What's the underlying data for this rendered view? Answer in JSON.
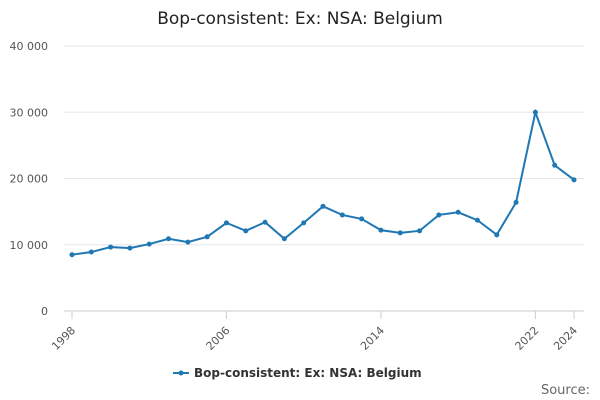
{
  "chart_data": {
    "type": "line",
    "title": "Bop-consistent: Ex: NSA: Belgium",
    "x": [
      1998,
      1999,
      2000,
      2001,
      2002,
      2003,
      2004,
      2005,
      2006,
      2007,
      2008,
      2009,
      2010,
      2011,
      2012,
      2013,
      2014,
      2015,
      2016,
      2017,
      2018,
      2019,
      2020,
      2021,
      2022,
      2023,
      2024
    ],
    "series": [
      {
        "name": "Bop-consistent: Ex: NSA: Belgium",
        "color": "#1f77b4",
        "values": [
          8500,
          8900,
          9650,
          9500,
          10100,
          10900,
          10400,
          11200,
          13300,
          12100,
          13400,
          10900,
          13300,
          15800,
          14500,
          13900,
          12200,
          11800,
          12100,
          14500,
          14900,
          13700,
          11500,
          16400,
          30000,
          22000,
          19800
        ]
      }
    ],
    "xlim": [
      1998,
      2024
    ],
    "xticks": [
      1998,
      2006,
      2014,
      2022,
      2024
    ],
    "ylim": [
      0,
      40000
    ],
    "yticks": [
      0,
      {
        "value": 10000,
        "label": "10 000"
      },
      {
        "value": 20000,
        "label": "20 000"
      },
      {
        "value": 30000,
        "label": "30 000"
      },
      {
        "value": 40000,
        "label": "40 000"
      }
    ],
    "grid": true,
    "legend": "bottom",
    "source": "Source:"
  }
}
